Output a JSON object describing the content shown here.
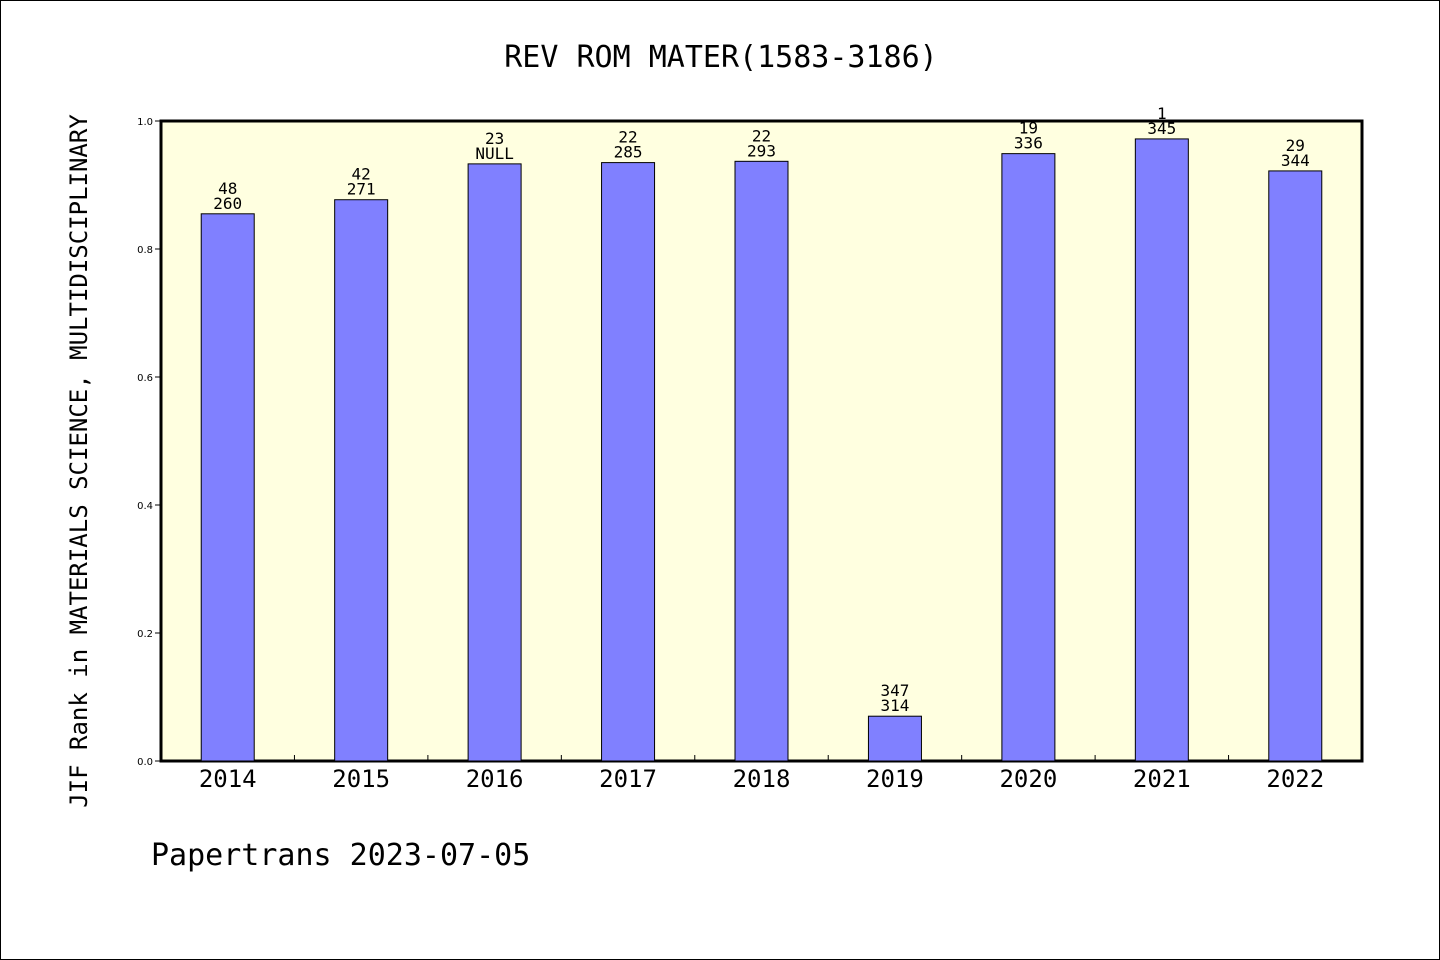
{
  "chart_data": {
    "type": "bar",
    "title": "REV ROM MATER(1583-3186)",
    "xlabel": "",
    "ylabel": "JIF Rank in MATERIALS SCIENCE, MULTIDISCIPLINARY",
    "categories": [
      "2014",
      "2015",
      "2016",
      "2017",
      "2018",
      "2019",
      "2020",
      "2021",
      "2022"
    ],
    "values": [
      0.855,
      0.877,
      0.933,
      0.935,
      0.937,
      0.07,
      0.949,
      0.972,
      0.922
    ],
    "bar_labels_top": [
      "48",
      "42",
      "23",
      "22",
      "22",
      "347",
      "19",
      "1",
      "29"
    ],
    "bar_labels_bottom": [
      "260",
      "271",
      "NULL",
      "285",
      "293",
      "314",
      "336",
      "345",
      "344"
    ],
    "ylim": [
      0,
      1.0
    ],
    "yticks": [
      "0.0",
      "0.2",
      "0.4",
      "0.6",
      "0.8",
      "1.0"
    ],
    "grid": false,
    "legend": "none",
    "colors": {
      "bar_fill": "#8080ff",
      "bar_stroke": "#000000",
      "plot_background": "#ffffe0"
    }
  },
  "footer": {
    "text": "Papertrans 2023-07-05"
  }
}
